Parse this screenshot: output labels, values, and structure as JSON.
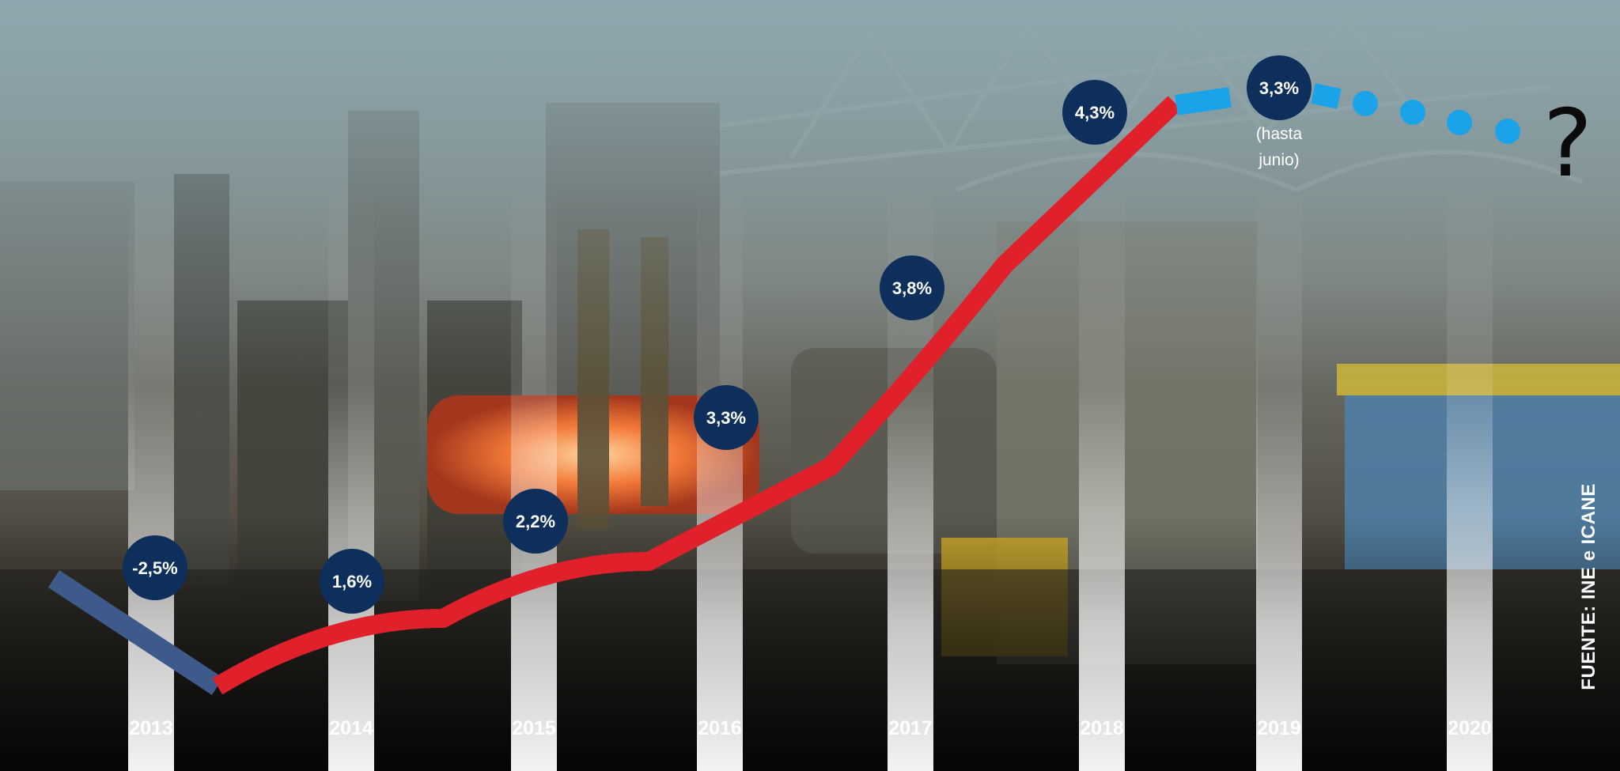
{
  "chart_data": {
    "type": "line",
    "categories": [
      "2013",
      "2014",
      "2015",
      "2016",
      "2017",
      "2018",
      "2019",
      "2020"
    ],
    "values": [
      -2.5,
      1.6,
      2.2,
      3.3,
      3.8,
      4.3,
      3.3,
      null
    ],
    "value_labels": [
      "-2,5%",
      "1,6%",
      "2,2%",
      "3,3%",
      "3,8%",
      "4,3%",
      "3,3%",
      ""
    ],
    "annotations": [
      {
        "category": "2019",
        "lines": [
          "(hasta",
          "junio)"
        ]
      },
      {
        "category": "2020",
        "text": "?"
      }
    ],
    "title": "",
    "xlabel": "",
    "ylabel": "",
    "grid": false,
    "source": "FUENTE: INE e ICANE"
  },
  "colors": {
    "negative_segment": "#3d5a8a",
    "positive_line": "#e0202a",
    "partial_year": "#1aa3e8",
    "bubble": "#0e2e5c",
    "column_bar": "#ffffff"
  },
  "background_description_icon": "industrial-forge-photo"
}
